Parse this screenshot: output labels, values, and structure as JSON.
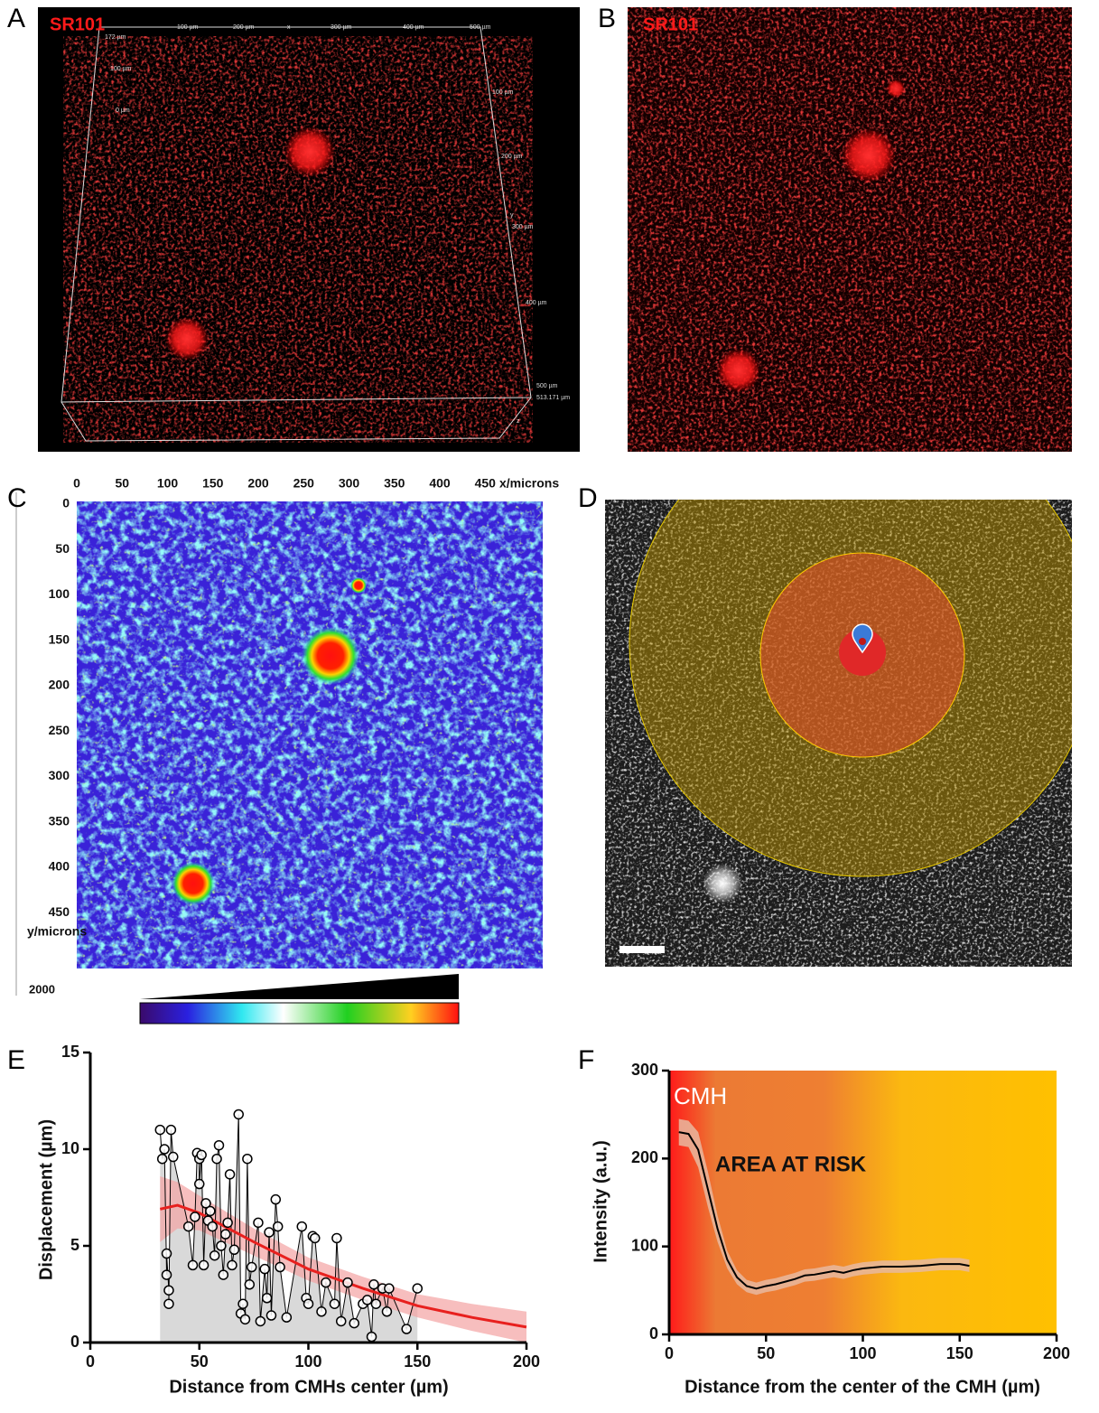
{
  "panel_labels": [
    "A",
    "B",
    "C",
    "D",
    "E",
    "F"
  ],
  "panel_a": {
    "stain": "SR101",
    "x_scale": [
      "100 µm",
      "200 µm",
      "x",
      "300 µm",
      "400 µm",
      "500 µm"
    ],
    "y_scale": [
      "100 µm",
      "200 µm",
      "y",
      "300 µm",
      "400 µm",
      "500 µm",
      "513.171 µm"
    ],
    "z_scale": [
      "172 µm",
      "100 µm",
      "0 µm",
      "z"
    ]
  },
  "panel_b": {
    "stain": "SR101"
  },
  "panel_c": {
    "xticks": [
      0,
      50,
      100,
      150,
      200,
      250,
      300,
      350,
      400,
      450
    ],
    "x_label": "x/microns",
    "yticks": [
      0,
      50,
      100,
      150,
      200,
      250,
      300,
      350,
      400,
      450
    ],
    "y_label": "y/microns",
    "colorbar_label": "2000"
  },
  "chart_data": [
    {
      "type": "scatter",
      "x_label": "Displacement (µm)",
      "xaxis_label": "Distance from CMHs center (µm)",
      "xlim": [
        0,
        200
      ],
      "xticks": [
        0,
        50,
        100,
        150,
        200
      ],
      "ylim": [
        0,
        15
      ],
      "yticks": [
        0,
        5,
        10,
        15
      ],
      "color": "#000000",
      "area_color": "#d9d9d9",
      "x": [
        32,
        33,
        34,
        35,
        35,
        36,
        36,
        37,
        38,
        45,
        47,
        48,
        49,
        50,
        50,
        51,
        52,
        53,
        54,
        55,
        56,
        57,
        58,
        59,
        60,
        61,
        62,
        63,
        64,
        65,
        66,
        68,
        69,
        70,
        71,
        72,
        73,
        74,
        77,
        78,
        80,
        81,
        82,
        83,
        85,
        86,
        87,
        90,
        97,
        99,
        100,
        102,
        103,
        106,
        108,
        112,
        113,
        115,
        118,
        121,
        125,
        127,
        129,
        130,
        131,
        134,
        136,
        137,
        145,
        150
      ],
      "values": [
        11.0,
        9.5,
        10.0,
        3.5,
        4.6,
        2.7,
        2.0,
        11.0,
        9.6,
        6.0,
        4.0,
        6.5,
        9.8,
        9.5,
        8.2,
        9.7,
        4.0,
        7.2,
        6.3,
        6.8,
        6.0,
        4.5,
        9.5,
        10.2,
        5.0,
        3.5,
        5.6,
        6.2,
        8.7,
        4.0,
        4.8,
        11.8,
        1.5,
        2.0,
        1.2,
        9.5,
        3.0,
        3.9,
        6.2,
        1.1,
        3.8,
        2.3,
        5.7,
        1.4,
        7.4,
        6.0,
        3.9,
        1.3,
        6.0,
        2.3,
        2.0,
        5.5,
        5.4,
        1.6,
        3.1,
        2.0,
        5.4,
        1.1,
        3.1,
        1.0,
        2.0,
        2.2,
        0.3,
        3.0,
        2.0,
        2.8,
        1.6,
        2.8,
        0.7,
        2.8
      ],
      "fit": {
        "color": "#e8201e",
        "band_color": "#f4a3a3",
        "x": [
          32,
          40,
          50,
          75,
          100,
          125,
          150,
          175,
          200
        ],
        "values": [
          6.9,
          7.1,
          6.7,
          5.2,
          3.8,
          2.8,
          1.9,
          1.3,
          0.8
        ],
        "lower": [
          5.2,
          5.9,
          5.8,
          4.5,
          3.2,
          2.2,
          1.3,
          0.6,
          0.0
        ],
        "upper": [
          8.6,
          8.3,
          7.6,
          5.9,
          4.4,
          3.4,
          2.5,
          2.0,
          1.6
        ]
      }
    },
    {
      "type": "line",
      "y_label": "Intensity (a.u.)",
      "xaxis_label": "Distance from the center of the CMH (µm)",
      "annotation": "CMH",
      "area_label": "AREA AT RISK",
      "xlim": [
        0,
        200
      ],
      "xticks": [
        0,
        50,
        100,
        150,
        200
      ],
      "ylim": [
        0,
        300
      ],
      "yticks": [
        0,
        100,
        200,
        300
      ],
      "color": "#000000",
      "band_color": "#e8b9a0",
      "x": [
        5,
        10,
        15,
        20,
        25,
        30,
        35,
        40,
        45,
        50,
        55,
        60,
        65,
        70,
        75,
        80,
        85,
        90,
        95,
        100,
        110,
        120,
        130,
        140,
        150,
        155
      ],
      "values": [
        230,
        228,
        210,
        165,
        120,
        85,
        65,
        55,
        52,
        55,
        57,
        60,
        63,
        67,
        68,
        70,
        72,
        70,
        73,
        75,
        77,
        77,
        78,
        80,
        80,
        78
      ],
      "error": [
        15,
        15,
        20,
        20,
        15,
        10,
        8,
        7,
        7,
        7,
        7,
        7,
        7,
        7,
        7,
        7,
        7,
        7,
        7,
        7,
        7,
        7,
        7,
        7,
        7,
        7
      ]
    }
  ]
}
